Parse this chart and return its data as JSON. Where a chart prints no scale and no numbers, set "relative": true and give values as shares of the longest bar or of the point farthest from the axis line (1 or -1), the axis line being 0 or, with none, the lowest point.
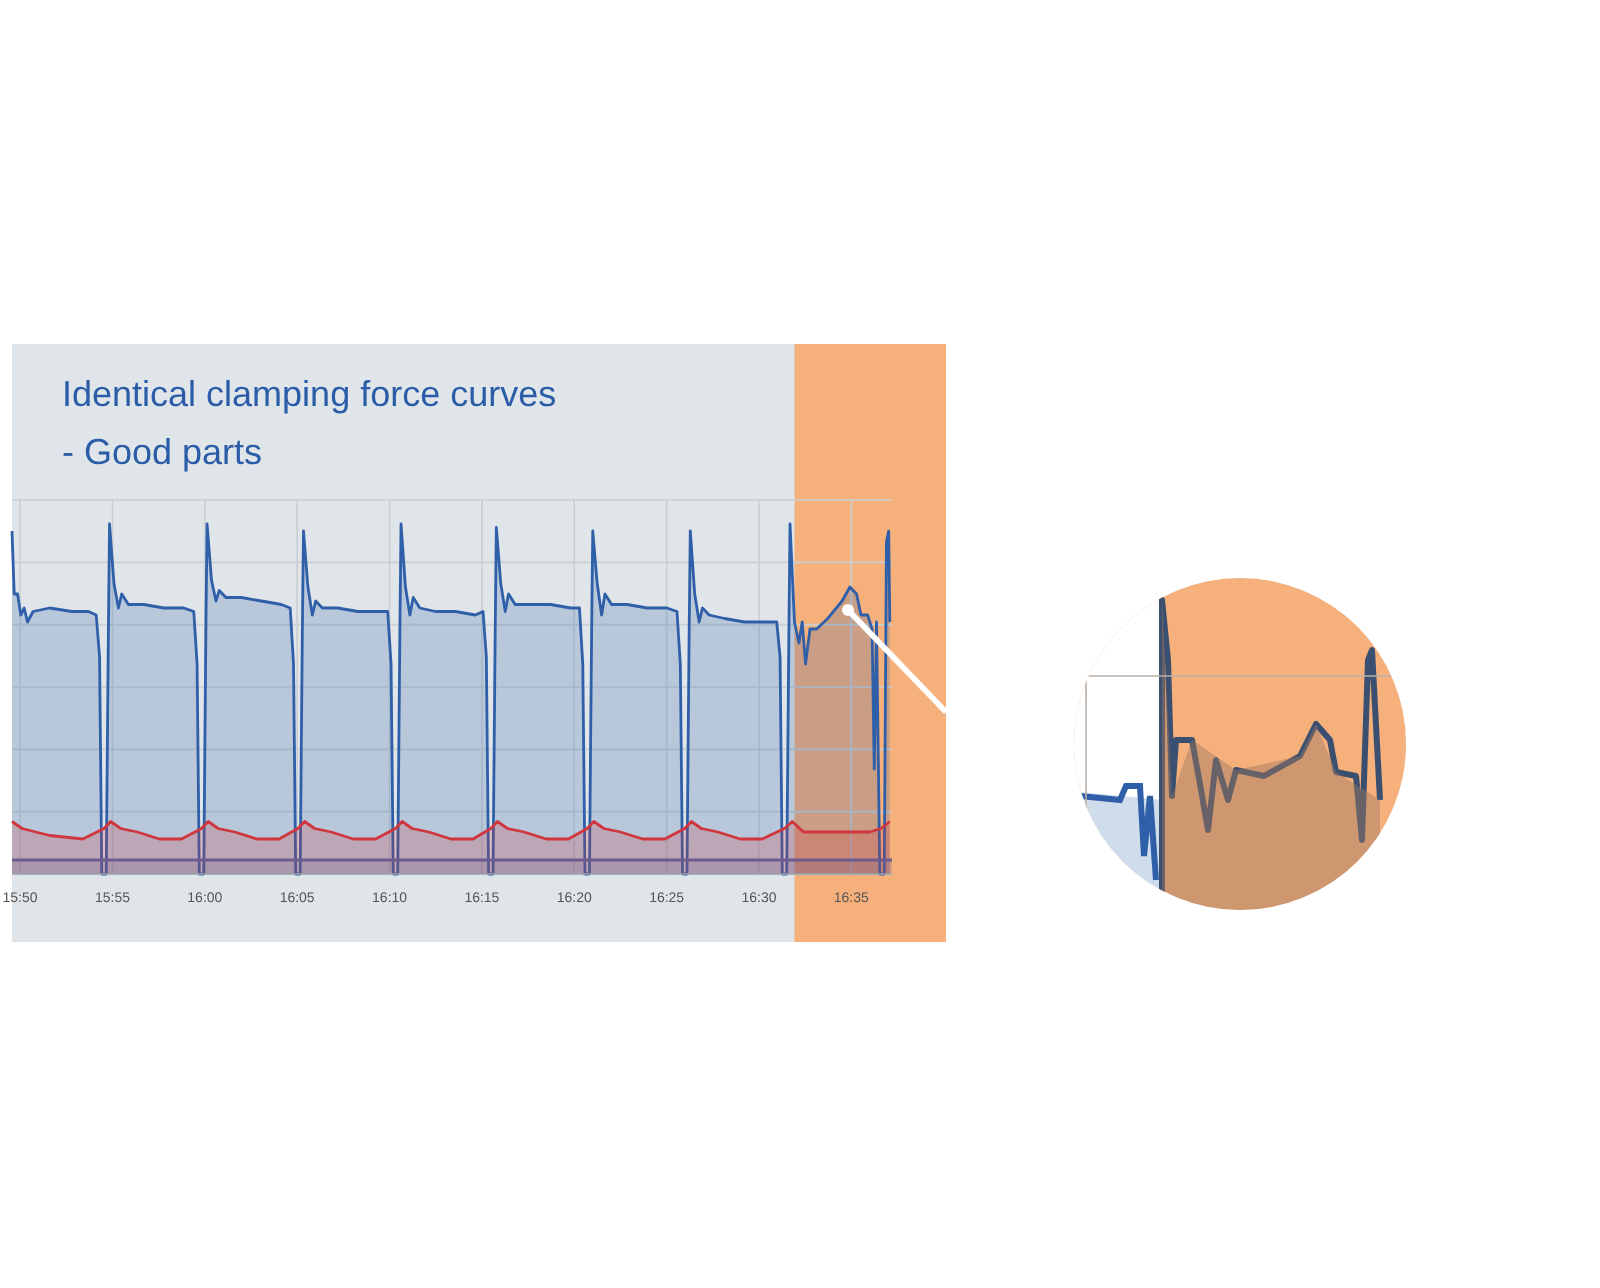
{
  "chart_data": {
    "type": "area",
    "title": "Identical clamping force curves\n- Good parts",
    "relative": true,
    "grid": true,
    "xlim": [
      15.826,
      16.62
    ],
    "xticks": [
      {
        "value": 15.8333,
        "label": "15:50"
      },
      {
        "value": 15.9167,
        "label": "15:55"
      },
      {
        "value": 16,
        "label": "16:00"
      },
      {
        "value": 16.0833,
        "label": "16:05"
      },
      {
        "value": 16.1667,
        "label": "16:10"
      },
      {
        "value": 16.25,
        "label": "16:15"
      },
      {
        "value": 16.3333,
        "label": "16:20"
      },
      {
        "value": 16.4167,
        "label": "16:25"
      },
      {
        "value": 16.5,
        "label": "16:30"
      },
      {
        "value": 16.5833,
        "label": "16:35"
      }
    ],
    "bands": [
      {
        "axis": "x",
        "from": 16.532,
        "to": 16.62,
        "color": "#f5b07c"
      }
    ],
    "series": [
      {
        "color": "#2f5fa8",
        "x": [
          15.826,
          15.828,
          15.831,
          15.834,
          15.837,
          15.84,
          15.845,
          15.86,
          15.88,
          15.895,
          15.902,
          15.905,
          15.907,
          15.909,
          15.911,
          15.913,
          15.914,
          15.918,
          15.922,
          15.925,
          15.931,
          15.945,
          15.963,
          15.981,
          15.99,
          15.993,
          15.995,
          15.997,
          15.999,
          16.001,
          16.002,
          16.006,
          16.01,
          16.013,
          16.019,
          16.033,
          16.051,
          16.069,
          16.077,
          16.08,
          16.082,
          16.084,
          16.086,
          16.088,
          16.089,
          16.093,
          16.097,
          16.1,
          16.106,
          16.12,
          16.138,
          16.156,
          16.165,
          16.168,
          16.17,
          16.172,
          16.174,
          16.176,
          16.177,
          16.181,
          16.185,
          16.188,
          16.194,
          16.208,
          16.226,
          16.244,
          16.251,
          16.254,
          16.256,
          16.258,
          16.26,
          16.262,
          16.263,
          16.267,
          16.271,
          16.274,
          16.28,
          16.294,
          16.312,
          16.33,
          16.338,
          16.341,
          16.343,
          16.345,
          16.347,
          16.349,
          16.35,
          16.354,
          16.358,
          16.361,
          16.367,
          16.381,
          16.399,
          16.417,
          16.426,
          16.429,
          16.431,
          16.433,
          16.435,
          16.437,
          16.438,
          16.442,
          16.446,
          16.449,
          16.455,
          16.469,
          16.487,
          16.505,
          16.516,
          16.519,
          16.521,
          16.523,
          16.525,
          16.527,
          16.528,
          16.532,
          16.536,
          16.539,
          16.542,
          16.546,
          16.552,
          16.562,
          16.575,
          16.582,
          16.588,
          16.592,
          16.598,
          16.602,
          16.604,
          16.606,
          16.609,
          16.611,
          16.613,
          16.615,
          16.617,
          16.618
        ],
        "values": [
          0.98,
          0.8,
          0.8,
          0.74,
          0.76,
          0.72,
          0.75,
          0.76,
          0.75,
          0.75,
          0.74,
          0.62,
          0,
          0,
          0,
          0.7,
          1.0,
          0.83,
          0.76,
          0.8,
          0.77,
          0.77,
          0.76,
          0.76,
          0.75,
          0.6,
          0,
          0,
          0,
          0.72,
          1.0,
          0.84,
          0.78,
          0.81,
          0.79,
          0.79,
          0.78,
          0.77,
          0.76,
          0.6,
          0,
          0,
          0,
          0.7,
          0.98,
          0.82,
          0.74,
          0.78,
          0.76,
          0.76,
          0.75,
          0.75,
          0.75,
          0.6,
          0,
          0,
          0,
          0.7,
          1.0,
          0.82,
          0.74,
          0.79,
          0.76,
          0.75,
          0.75,
          0.74,
          0.75,
          0.62,
          0,
          0,
          0,
          0.7,
          0.99,
          0.83,
          0.75,
          0.8,
          0.77,
          0.77,
          0.77,
          0.76,
          0.76,
          0.6,
          0,
          0,
          0,
          0.7,
          0.98,
          0.83,
          0.74,
          0.8,
          0.77,
          0.77,
          0.76,
          0.76,
          0.75,
          0.6,
          0,
          0,
          0,
          0.7,
          0.98,
          0.8,
          0.72,
          0.76,
          0.74,
          0.73,
          0.72,
          0.72,
          0.72,
          0.62,
          0,
          0,
          0,
          0.7,
          1.0,
          0.72,
          0.66,
          0.72,
          0.6,
          0.7,
          0.7,
          0.73,
          0.78,
          0.82,
          0.8,
          0.74,
          0.74,
          0.7,
          0.3,
          0.72,
          0,
          0,
          0,
          0.95,
          0.98,
          0.72
        ]
      },
      {
        "color": "#d0363d",
        "x": [
          15.826,
          15.835,
          15.86,
          15.89,
          15.909,
          15.915,
          15.924,
          15.939,
          15.959,
          15.979,
          15.997,
          16.003,
          16.012,
          16.027,
          16.047,
          16.067,
          16.084,
          16.09,
          16.099,
          16.114,
          16.134,
          16.154,
          16.172,
          16.178,
          16.187,
          16.202,
          16.222,
          16.242,
          16.258,
          16.264,
          16.273,
          16.288,
          16.308,
          16.328,
          16.345,
          16.351,
          16.36,
          16.375,
          16.395,
          16.415,
          16.433,
          16.439,
          16.448,
          16.463,
          16.483,
          16.503,
          16.523,
          16.53,
          16.54,
          16.6,
          16.61,
          16.618
        ],
        "values": [
          0.15,
          0.13,
          0.11,
          0.1,
          0.13,
          0.15,
          0.13,
          0.12,
          0.1,
          0.1,
          0.13,
          0.15,
          0.13,
          0.12,
          0.1,
          0.1,
          0.13,
          0.15,
          0.13,
          0.12,
          0.1,
          0.1,
          0.13,
          0.15,
          0.13,
          0.12,
          0.1,
          0.1,
          0.13,
          0.15,
          0.13,
          0.12,
          0.1,
          0.1,
          0.13,
          0.15,
          0.13,
          0.12,
          0.1,
          0.1,
          0.13,
          0.15,
          0.13,
          0.12,
          0.1,
          0.1,
          0.13,
          0.15,
          0.12,
          0.12,
          0.13,
          0.15
        ]
      },
      {
        "color": "#6b5b8e",
        "x": [
          15.826,
          16.62
        ],
        "values": [
          0.04,
          0.04
        ]
      }
    ]
  }
}
